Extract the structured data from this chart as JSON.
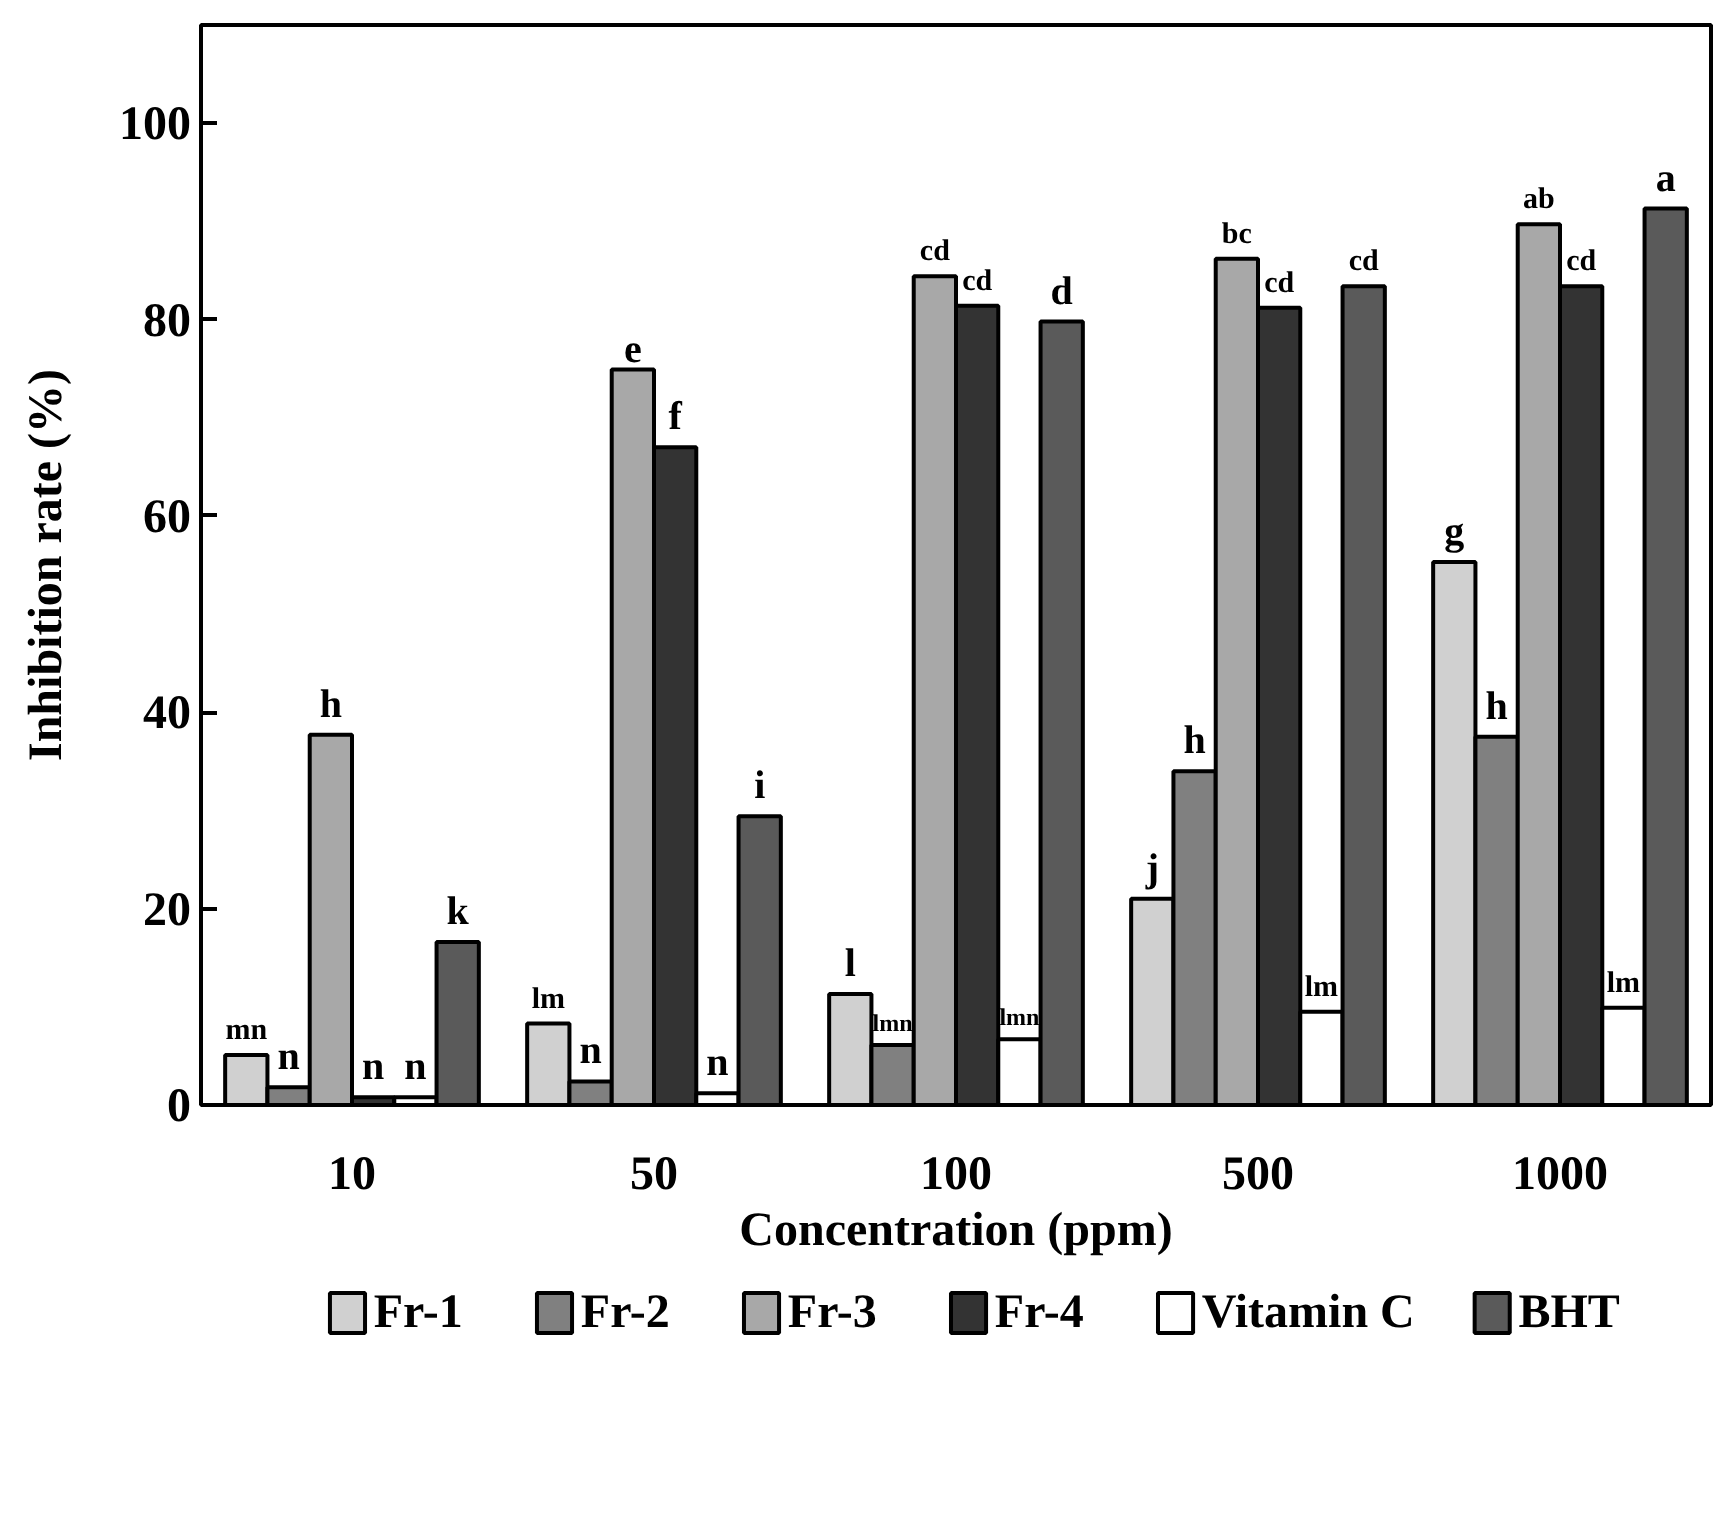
{
  "chart_data": {
    "type": "bar",
    "xlabel": "Concentration (ppm)",
    "ylabel": "Inhibition rate (%)",
    "categories": [
      "10",
      "50",
      "100",
      "500",
      "1000"
    ],
    "series": [
      {
        "name": "Fr-1",
        "color": "#d0d0d0",
        "values": [
          5.1,
          8.3,
          11.3,
          21.0,
          55.3
        ],
        "value_labels": [
          "mn",
          "lm",
          "l",
          "j",
          "g"
        ]
      },
      {
        "name": "Fr-2",
        "color": "#808080",
        "values": [
          1.8,
          2.4,
          6.1,
          34.0,
          37.5
        ],
        "value_labels": [
          "n",
          "n",
          "lmn",
          "h",
          "h"
        ]
      },
      {
        "name": "Fr-3",
        "color": "#a8a8a8",
        "values": [
          37.7,
          74.9,
          84.4,
          86.2,
          89.7
        ],
        "value_labels": [
          "h",
          "e",
          "cd",
          "bc",
          "ab"
        ]
      },
      {
        "name": "Fr-4",
        "color": "#333333",
        "values": [
          0.8,
          67.0,
          81.4,
          81.2,
          83.4
        ],
        "value_labels": [
          "n",
          "f",
          "cd",
          "cd",
          "cd"
        ]
      },
      {
        "name": "Vitamin C",
        "color": "#ffffff",
        "values": [
          0.8,
          1.2,
          6.7,
          9.5,
          9.9
        ],
        "value_labels": [
          "n",
          "n",
          "lmn",
          "lm",
          "lm"
        ]
      },
      {
        "name": "BHT",
        "color": "#5a5a5a",
        "values": [
          16.6,
          29.4,
          79.8,
          83.4,
          91.3
        ],
        "value_labels": [
          "k",
          "i",
          "d",
          "cd",
          "a"
        ]
      }
    ],
    "ylim": [
      0,
      110
    ],
    "yticks": [
      0,
      20,
      40,
      60,
      80,
      100
    ],
    "grid": false,
    "legend": "bottom"
  }
}
